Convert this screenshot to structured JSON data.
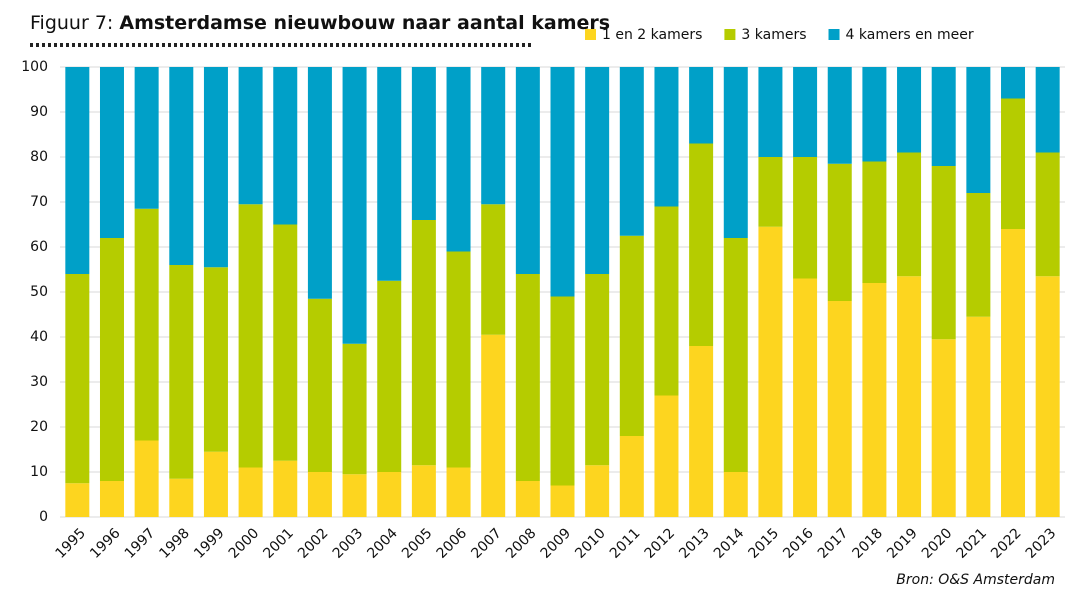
{
  "chart_data": {
    "type": "stacked-bar",
    "title_prefix": "Figuur 7:",
    "title": "Amsterdamse nieuwbouw naar aantal kamers",
    "source": "Bron: O&S Amsterdam",
    "categories": [
      "1995",
      "1996",
      "1997",
      "1998",
      "1999",
      "2000",
      "2001",
      "2002",
      "2003",
      "2004",
      "2005",
      "2006",
      "2007",
      "2008",
      "2009",
      "2010",
      "2011",
      "2012",
      "2013",
      "2014",
      "2015",
      "2016",
      "2017",
      "2018",
      "2019",
      "2020",
      "2021",
      "2022",
      "2023"
    ],
    "series": [
      {
        "name": "1 en 2 kamers",
        "color": "#fdd51f",
        "values": [
          7.5,
          8,
          17,
          8.5,
          14.5,
          11,
          12.5,
          10,
          9.5,
          10,
          11.5,
          11,
          40.5,
          8,
          7,
          11.5,
          18,
          27,
          38,
          10,
          64.5,
          53,
          48,
          52,
          53.5,
          39.5,
          44.5,
          64,
          53.5
        ]
      },
      {
        "name": "3 kamers",
        "color": "#b5cc00",
        "values": [
          46.5,
          54,
          51.5,
          47.5,
          41,
          58.5,
          52.5,
          38.5,
          29,
          42.5,
          54.5,
          48,
          29,
          46,
          42,
          42.5,
          44.5,
          42,
          45,
          52,
          15.5,
          27,
          30.5,
          27,
          27.5,
          38.5,
          27.5,
          29,
          27.5
        ]
      },
      {
        "name": "4 kamers en meer",
        "color": "#00a0c8",
        "values": [
          46,
          38,
          31.5,
          44,
          44.5,
          30.5,
          35,
          51.5,
          61.5,
          47.5,
          34,
          41,
          30.5,
          46,
          51,
          46,
          37.5,
          31,
          17,
          38,
          20,
          20,
          21.5,
          21,
          19,
          22,
          28,
          7,
          19
        ]
      }
    ],
    "ylim": [
      0,
      100
    ],
    "yticks": [
      0,
      10,
      20,
      30,
      40,
      50,
      60,
      70,
      80,
      90,
      100
    ],
    "grid": true,
    "legend": "top-right"
  }
}
